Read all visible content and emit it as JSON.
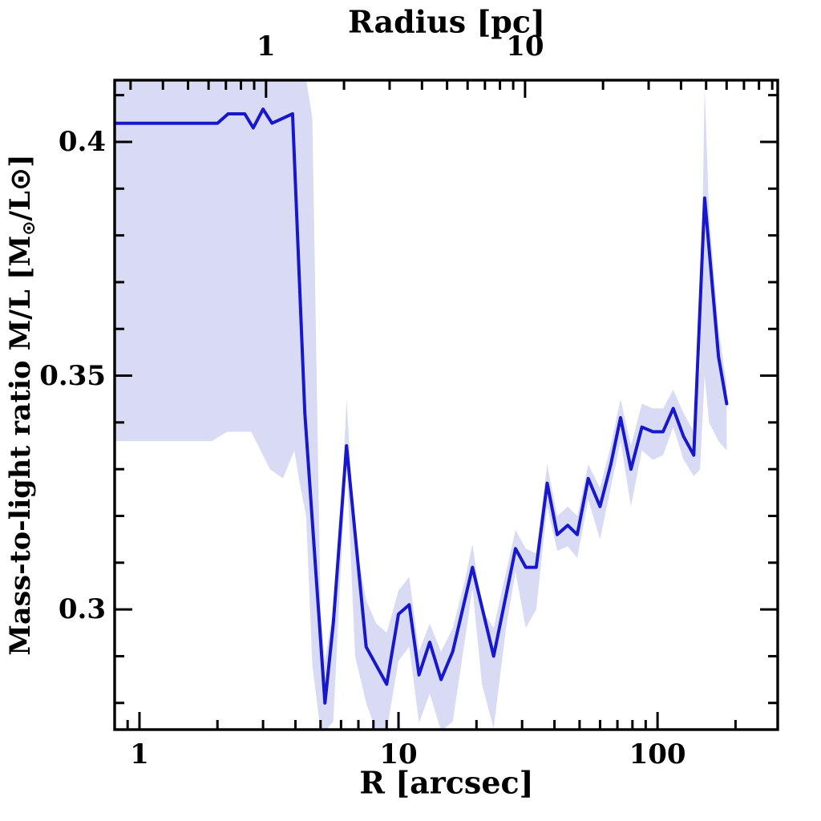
{
  "figure": {
    "background": "#ffffff",
    "frame_color": "#000000",
    "line_color": "#1717cc",
    "band_color": "#d9dbf4"
  },
  "chart_data": {
    "type": "line",
    "x_scale": "log",
    "top_axis": {
      "title": "Radius [pc]",
      "unit": "pc",
      "arcsec_per_pc": 3.08,
      "major_ticks": [
        1,
        10
      ],
      "tick_labels": [
        "1",
        "10"
      ],
      "minor_ticks": [
        0.3,
        0.4,
        0.5,
        0.6,
        0.7,
        0.8,
        0.9,
        2,
        3,
        4,
        5,
        6,
        7,
        8,
        9,
        20,
        30,
        40,
        50,
        60,
        70,
        80,
        90
      ]
    },
    "x_axis": {
      "title": "R [arcsec]",
      "range": [
        0.802,
        291
      ],
      "major_ticks": [
        1,
        10,
        100
      ],
      "tick_labels": [
        "1",
        "10",
        "100"
      ],
      "minor_ticks": [
        0.9,
        2,
        3,
        4,
        5,
        6,
        7,
        8,
        9,
        20,
        30,
        40,
        50,
        60,
        70,
        80,
        90,
        200
      ]
    },
    "y_axis": {
      "title_parts": {
        "p1": "Mass-to-light ratio M/L [M",
        "sub1": "⊙",
        "p2": "/L",
        "p3": "⊙",
        "p4": "]"
      },
      "range": [
        0.2743,
        0.4132
      ],
      "major_ticks": [
        0.3,
        0.35,
        0.4
      ],
      "tick_labels": [
        "0.3",
        "0.35",
        "0.4"
      ],
      "minor_ticks": [
        0.28,
        0.29,
        0.31,
        0.32,
        0.33,
        0.34,
        0.36,
        0.37,
        0.38,
        0.39,
        0.41
      ]
    },
    "series": [
      {
        "name": "mass-to-light profile",
        "R": [
          0.8,
          2.0,
          2.2,
          2.55,
          2.75,
          3.0,
          3.25,
          3.9,
          4.35,
          5.2,
          5.6,
          6.3,
          7.5,
          9.0,
          10.0,
          11.0,
          12.0,
          13.2,
          14.6,
          16.2,
          19.3,
          23.3,
          28.3,
          31,
          34,
          37.5,
          41,
          45,
          49,
          54,
          60,
          66,
          72,
          79,
          87,
          96,
          105,
          115,
          126,
          138,
          152,
          172,
          185
        ],
        "ML": [
          0.404,
          0.404,
          0.406,
          0.406,
          0.403,
          0.407,
          0.404,
          0.406,
          0.342,
          0.28,
          0.297,
          0.335,
          0.292,
          0.284,
          0.299,
          0.301,
          0.286,
          0.293,
          0.285,
          0.291,
          0.309,
          0.29,
          0.313,
          0.309,
          0.309,
          0.327,
          0.316,
          0.318,
          0.316,
          0.328,
          0.322,
          0.331,
          0.341,
          0.33,
          0.339,
          0.338,
          0.338,
          0.343,
          0.337,
          0.333,
          0.388,
          0.354,
          0.344
        ]
      }
    ],
    "band": {
      "name": "uncertainty band",
      "R": [
        0.8,
        1.9,
        2.18,
        2.7,
        3.19,
        3.58,
        3.96,
        4.14,
        4.4,
        4.65,
        5.0,
        5.2,
        5.6,
        6.0,
        6.3,
        6.8,
        7.5,
        8.2,
        9.0,
        10,
        11,
        12,
        13.2,
        14.6,
        16.2,
        18,
        19.3,
        21,
        23.3,
        26,
        28.3,
        31,
        34,
        37.5,
        41,
        45,
        49,
        54,
        60,
        66,
        72,
        79,
        87,
        96,
        105,
        115,
        126,
        138,
        146,
        152,
        158,
        172,
        185
      ],
      "hi": [
        0.4135,
        0.4135,
        0.4135,
        0.4135,
        0.4135,
        0.4135,
        0.4135,
        0.4135,
        0.4135,
        0.405,
        0.3,
        0.289,
        0.3,
        0.32,
        0.345,
        0.315,
        0.302,
        0.297,
        0.295,
        0.304,
        0.307,
        0.291,
        0.297,
        0.291,
        0.296,
        0.306,
        0.314,
        0.3,
        0.296,
        0.308,
        0.317,
        0.313,
        0.312,
        0.331,
        0.32,
        0.322,
        0.32,
        0.331,
        0.326,
        0.335,
        0.345,
        0.335,
        0.344,
        0.343,
        0.343,
        0.347,
        0.342,
        0.338,
        0.352,
        0.412,
        0.385,
        0.36,
        0.348
      ],
      "lo": [
        0.336,
        0.336,
        0.338,
        0.338,
        0.33,
        0.328,
        0.334,
        0.3275,
        0.32,
        0.288,
        0.274,
        0.274,
        0.276,
        0.31,
        0.332,
        0.29,
        0.28,
        0.274,
        0.274,
        0.289,
        0.292,
        0.2757,
        0.282,
        0.274,
        0.276,
        0.293,
        0.3045,
        0.284,
        0.2745,
        0.296,
        0.308,
        0.296,
        0.3,
        0.322,
        0.3125,
        0.3135,
        0.311,
        0.3235,
        0.315,
        0.326,
        0.336,
        0.322,
        0.334,
        0.332,
        0.333,
        0.339,
        0.332,
        0.3285,
        0.33,
        0.35,
        0.34,
        0.336,
        0.334
      ]
    }
  }
}
